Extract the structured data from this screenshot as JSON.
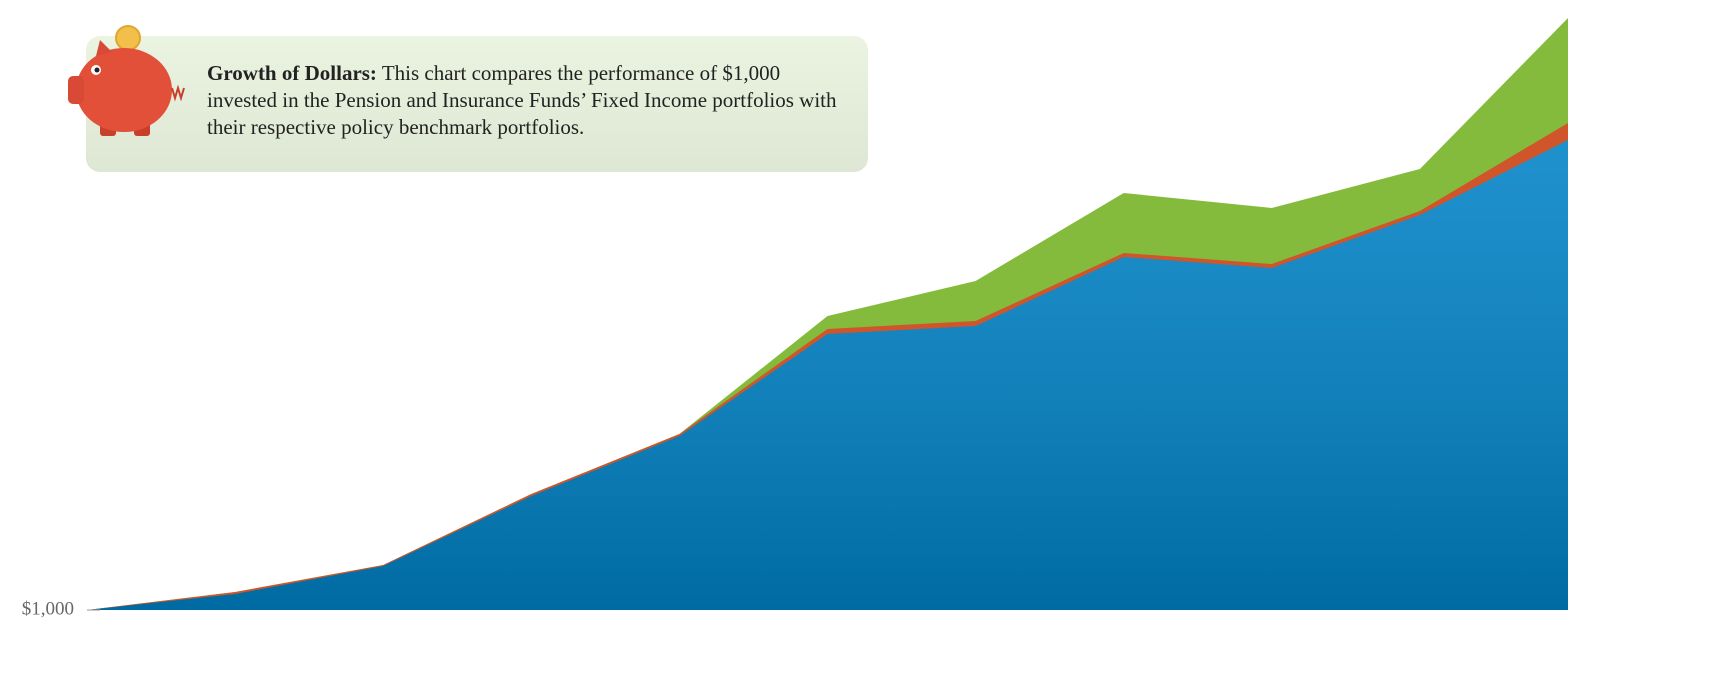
{
  "chart_data": {
    "type": "area",
    "annotation": {
      "title": "Growth of Dollars:",
      "text": "This chart compares the performance of $1,000 invested in the Pension and Insurance Funds’ Fixed Income portfolios with their respective policy benchmark portfolios."
    },
    "categories": [
      null,
      null,
      null,
      null,
      null,
      null,
      null,
      null,
      null,
      null,
      null
    ],
    "series": [
      {
        "color": "#84bb3c",
        "values": [
          1000,
          1036,
          1090,
          1232,
          1352,
          1588,
          1658,
          1834,
          1804,
          1882,
          2184
        ]
      },
      {
        "color": "#d0552a",
        "values": [
          1000,
          1036,
          1090,
          1232,
          1352,
          1562,
          1578,
          1714,
          1692,
          1798,
          1974
        ]
      },
      {
        "color": "#0082c6",
        "values": [
          1000,
          1032,
          1088,
          1228,
          1348,
          1552,
          1568,
          1706,
          1684,
          1790,
          1940
        ]
      }
    ],
    "ylim": [
      1000,
      2200
    ],
    "yticks": [
      {
        "value": 1000,
        "label": "$1,000"
      }
    ]
  }
}
